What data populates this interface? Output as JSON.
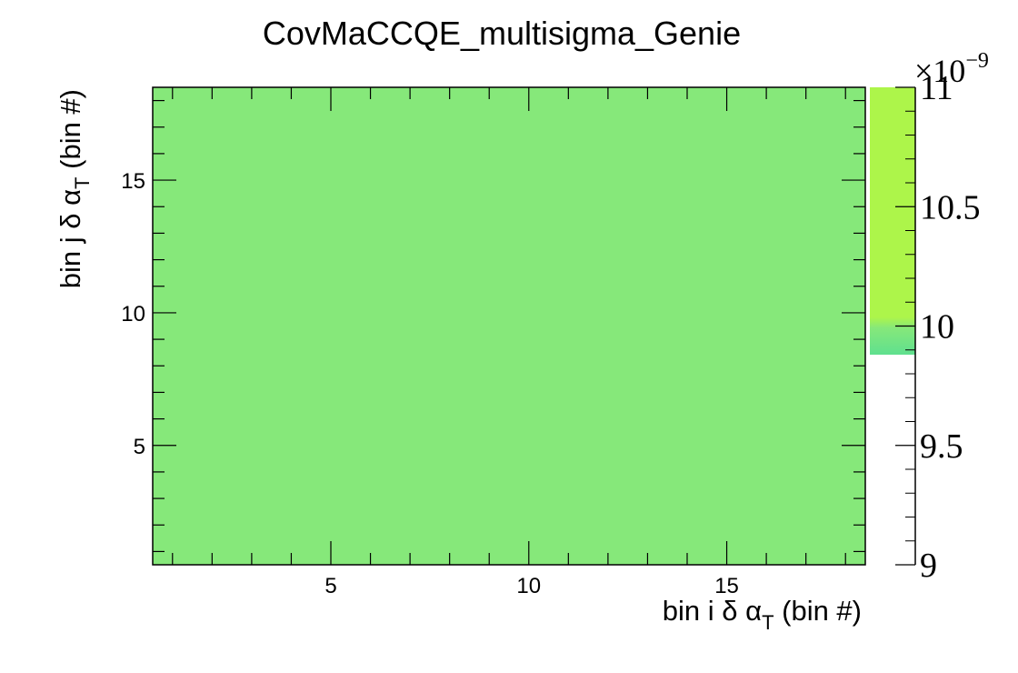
{
  "chart_data": {
    "type": "heatmap",
    "title": "CovMaCCQE_multisigma_Genie",
    "xlabel": {
      "main": "bin i δ α",
      "sub": "T",
      "tail": " (bin #)"
    },
    "ylabel": {
      "main": "bin j δ α",
      "sub": "T",
      "tail": " (bin #)"
    },
    "xlim": [
      0.5,
      18.5
    ],
    "ylim": [
      0.5,
      18.5
    ],
    "x_ticks": [
      5,
      10,
      15
    ],
    "y_ticks": [
      5,
      10,
      15
    ],
    "cell_value": 1e-08,
    "z_range": [
      9e-09,
      1.1e-08
    ],
    "colorbar": {
      "exponent_label": "×10",
      "exponent_power": "−9",
      "ticks": [
        {
          "value": 9,
          "label": "9"
        },
        {
          "value": 9.5,
          "label": "9.5"
        },
        {
          "value": 10,
          "label": "10"
        },
        {
          "value": 10.5,
          "label": "10.5"
        },
        {
          "value": 11,
          "label": "11"
        }
      ],
      "filled_range": [
        9.88,
        11
      ],
      "colors": {
        "low": "#5fe08f",
        "mid": "#86e87a",
        "high": "#adf54a"
      }
    },
    "fill_color": "#86e87a"
  }
}
